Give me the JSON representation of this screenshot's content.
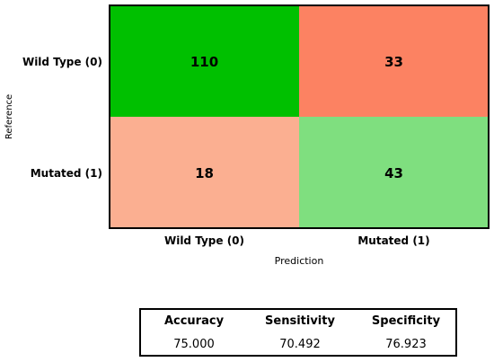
{
  "chart_data": {
    "type": "heatmap",
    "title": "",
    "xlabel": "Prediction",
    "ylabel": "Reference",
    "x_categories": [
      "Wild Type (0)",
      "Mutated (1)"
    ],
    "y_categories": [
      "Wild Type (0)",
      "Mutated (1)"
    ],
    "values": [
      [
        110,
        33
      ],
      [
        18,
        43
      ]
    ],
    "cell_colors": [
      [
        "#00c000",
        "#fc8262"
      ],
      [
        "#fbaf91",
        "#7fdf7f"
      ]
    ],
    "grid": false
  },
  "metrics": {
    "headers": [
      "Accuracy",
      "Sensitivity",
      "Specificity"
    ],
    "values": [
      "75.000",
      "70.492",
      "76.923"
    ]
  }
}
